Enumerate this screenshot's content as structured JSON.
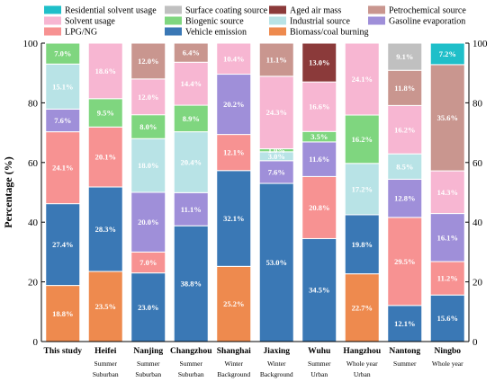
{
  "chart_data": {
    "type": "bar",
    "stacked": true,
    "ylabel": "Percentage (%)",
    "xlabel": "",
    "ylim": [
      0,
      100
    ],
    "yticks": [
      0,
      20,
      40,
      60,
      80,
      100
    ],
    "legend_placement": "top",
    "categories": [
      "This study",
      "Heifei",
      "Nanjing",
      "Changzhou",
      "Shanghai",
      "Jiaxing",
      "Wuhu",
      "Hangzhou",
      "Nantong",
      "Ningbo"
    ],
    "sublabels": [
      [
        "",
        ""
      ],
      [
        "Summer",
        "Suburban"
      ],
      [
        "Summer",
        "Suburban"
      ],
      [
        "Summer",
        "Suburban"
      ],
      [
        "Winter",
        "Background"
      ],
      [
        "Winter",
        "Background"
      ],
      [
        "Summer",
        "Urban"
      ],
      [
        "Whole year",
        "Urban"
      ],
      [
        "Summer",
        ""
      ],
      [
        "Whole year",
        ""
      ]
    ],
    "legend": [
      "Residential solvent usage",
      "Surface coating source",
      "Aged air mass",
      "Petrochemical source",
      "Solvent usage",
      "Biogenic source",
      "Industrial source",
      "Gasoline evaporation",
      "LPG/NG",
      "Vehicle emission",
      "Biomass/coal burning"
    ],
    "series_colors": {
      "Residential solvent usage": "#1fbfc9",
      "Surface coating source": "#c0c0c0",
      "Aged air mass": "#8b3a3a",
      "Petrochemical source": "#c9968f",
      "Solvent usage": "#f7b6d2",
      "Biogenic source": "#7fd67f",
      "Industrial source": "#b8e3e6",
      "Gasoline evaporation": "#9f8fd9",
      "LPG/NG": "#f79292",
      "Vehicle emission": "#3a78b5",
      "Biomass/coal burning": "#ee8a4e"
    },
    "stacks": [
      [
        {
          "source": "Biomass/coal burning",
          "value": 18.8,
          "label": "18.8%"
        },
        {
          "source": "Vehicle emission",
          "value": 27.4,
          "label": "27.4%"
        },
        {
          "source": "LPG/NG",
          "value": 24.1,
          "label": "24.1%"
        },
        {
          "source": "Gasoline evaporation",
          "value": 7.6,
          "label": "7.6%"
        },
        {
          "source": "Industrial source",
          "value": 15.1,
          "label": "15.1%"
        },
        {
          "source": "Biogenic source",
          "value": 7.0,
          "label": "7.0%"
        }
      ],
      [
        {
          "source": "Biomass/coal burning",
          "value": 23.5,
          "label": "23.5%"
        },
        {
          "source": "Vehicle emission",
          "value": 28.3,
          "label": "28.3%"
        },
        {
          "source": "LPG/NG",
          "value": 20.1,
          "label": "20.1%"
        },
        {
          "source": "Biogenic source",
          "value": 9.5,
          "label": "9.5%"
        },
        {
          "source": "Solvent usage",
          "value": 18.6,
          "label": "18.6%"
        }
      ],
      [
        {
          "source": "Vehicle emission",
          "value": 23.0,
          "label": "23.0%"
        },
        {
          "source": "LPG/NG",
          "value": 7.0,
          "label": "7.0%"
        },
        {
          "source": "Gasoline evaporation",
          "value": 20.0,
          "label": "20.0%"
        },
        {
          "source": "Industrial source",
          "value": 18.0,
          "label": "18.0%"
        },
        {
          "source": "Biogenic source",
          "value": 8.0,
          "label": "8.0%"
        },
        {
          "source": "Solvent usage",
          "value": 12.0,
          "label": "12.0%"
        },
        {
          "source": "Petrochemical source",
          "value": 12.0,
          "label": "12.0%"
        }
      ],
      [
        {
          "source": "Vehicle emission",
          "value": 38.8,
          "label": "38.8%"
        },
        {
          "source": "Gasoline evaporation",
          "value": 11.1,
          "label": "11.1%"
        },
        {
          "source": "Industrial source",
          "value": 20.4,
          "label": "20.4%"
        },
        {
          "source": "Biogenic source",
          "value": 8.9,
          "label": "8.9%"
        },
        {
          "source": "Solvent usage",
          "value": 14.4,
          "label": "14.4%"
        },
        {
          "source": "Petrochemical source",
          "value": 6.4,
          "label": "6.4%"
        }
      ],
      [
        {
          "source": "Biomass/coal burning",
          "value": 25.2,
          "label": "25.2%"
        },
        {
          "source": "Vehicle emission",
          "value": 32.1,
          "label": "32.1%"
        },
        {
          "source": "LPG/NG",
          "value": 12.1,
          "label": "12.1%"
        },
        {
          "source": "Gasoline evaporation",
          "value": 20.2,
          "label": "20.2%"
        },
        {
          "source": "Solvent usage",
          "value": 10.4,
          "label": "10.4%"
        }
      ],
      [
        {
          "source": "Vehicle emission",
          "value": 53.0,
          "label": "53.0%"
        },
        {
          "source": "Gasoline evaporation",
          "value": 7.6,
          "label": "7.6%"
        },
        {
          "source": "Industrial source",
          "value": 3.0,
          "label": "3.0%"
        },
        {
          "source": "Biogenic source",
          "value": 1.0,
          "label": "1.0%"
        },
        {
          "source": "Solvent usage",
          "value": 24.3,
          "label": "24.3%"
        },
        {
          "source": "Petrochemical source",
          "value": 11.1,
          "label": "11.1%"
        }
      ],
      [
        {
          "source": "Vehicle emission",
          "value": 34.5,
          "label": "34.5%"
        },
        {
          "source": "LPG/NG",
          "value": 20.8,
          "label": "20.8%"
        },
        {
          "source": "Gasoline evaporation",
          "value": 11.6,
          "label": "11.6%"
        },
        {
          "source": "Biogenic source",
          "value": 3.5,
          "label": "3.5%"
        },
        {
          "source": "Solvent usage",
          "value": 16.6,
          "label": "16.6%"
        },
        {
          "source": "Aged air mass",
          "value": 13.0,
          "label": "13.0%"
        }
      ],
      [
        {
          "source": "Biomass/coal burning",
          "value": 22.7,
          "label": "22.7%"
        },
        {
          "source": "Vehicle emission",
          "value": 19.8,
          "label": "19.8%"
        },
        {
          "source": "Industrial source",
          "value": 17.2,
          "label": "17.2%"
        },
        {
          "source": "Biogenic source",
          "value": 16.2,
          "label": "16.2%"
        },
        {
          "source": "Solvent usage",
          "value": 24.1,
          "label": "24.1%"
        }
      ],
      [
        {
          "source": "Vehicle emission",
          "value": 12.1,
          "label": "12.1%"
        },
        {
          "source": "LPG/NG",
          "value": 29.5,
          "label": "29.5%"
        },
        {
          "source": "Gasoline evaporation",
          "value": 12.8,
          "label": "12.8%"
        },
        {
          "source": "Industrial source",
          "value": 8.5,
          "label": "8.5%"
        },
        {
          "source": "Solvent usage",
          "value": 16.2,
          "label": "16.2%"
        },
        {
          "source": "Petrochemical source",
          "value": 11.8,
          "label": "11.8%"
        },
        {
          "source": "Surface coating source",
          "value": 9.1,
          "label": "9.1%"
        }
      ],
      [
        {
          "source": "Vehicle emission",
          "value": 15.6,
          "label": "15.6%"
        },
        {
          "source": "LPG/NG",
          "value": 11.2,
          "label": "11.2%"
        },
        {
          "source": "Gasoline evaporation",
          "value": 16.1,
          "label": "16.1%"
        },
        {
          "source": "Solvent usage",
          "value": 14.3,
          "label": "14.3%"
        },
        {
          "source": "Petrochemical source",
          "value": 35.6,
          "label": "35.6%"
        },
        {
          "source": "Residential solvent usage",
          "value": 7.2,
          "label": "7.2%"
        }
      ]
    ]
  }
}
